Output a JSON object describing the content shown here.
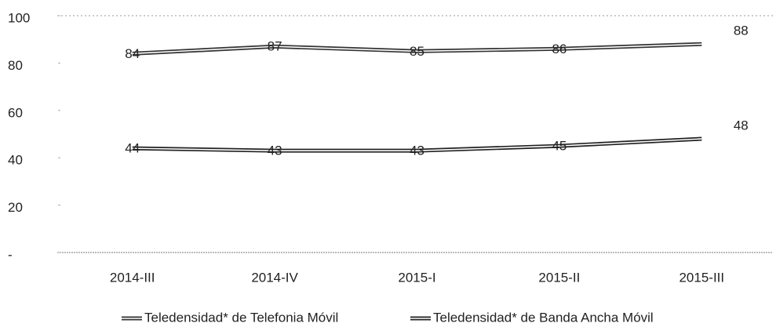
{
  "chart_data": {
    "type": "line",
    "categories": [
      "2014-III",
      "2014-IV",
      "2015-I",
      "2015-II",
      "2015-III"
    ],
    "series": [
      {
        "name": "Teledensidad* de Telefonia Móvil",
        "color": "#333333",
        "values": [
          84,
          87,
          85,
          86,
          88
        ]
      },
      {
        "name": "Teledensidad* de Banda Ancha Móvil",
        "color": "#222222",
        "values": [
          44,
          43,
          43,
          45,
          48
        ]
      }
    ],
    "ylim": [
      0,
      100
    ],
    "yticks": [
      {
        "value": 0,
        "label": "-"
      },
      20,
      40,
      60,
      80,
      100
    ],
    "legend": "bottom"
  }
}
